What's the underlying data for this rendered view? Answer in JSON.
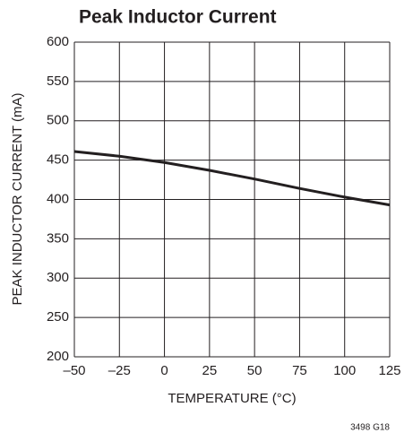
{
  "chart_data": {
    "type": "line",
    "title": "Peak Inductor Current",
    "xlabel": "TEMPERATURE (°C)",
    "ylabel": "PEAK INDUCTOR CURRENT (mA)",
    "annotation": "3498 G18",
    "x": [
      -50,
      -25,
      0,
      25,
      50,
      75,
      100,
      125
    ],
    "series": [
      {
        "name": "Peak Inductor Current",
        "color": "#231f20",
        "values": [
          461,
          455,
          447,
          437,
          426,
          414,
          403,
          393
        ]
      }
    ],
    "xlim": [
      -50,
      125
    ],
    "xticks": [
      {
        "value": -50,
        "label": "–50"
      },
      {
        "value": -25,
        "label": "–25"
      },
      0,
      25,
      50,
      75,
      100,
      125
    ],
    "ylim": [
      200,
      600
    ],
    "yticks": [
      200,
      250,
      300,
      350,
      400,
      450,
      500,
      550,
      600
    ],
    "grid": true
  }
}
